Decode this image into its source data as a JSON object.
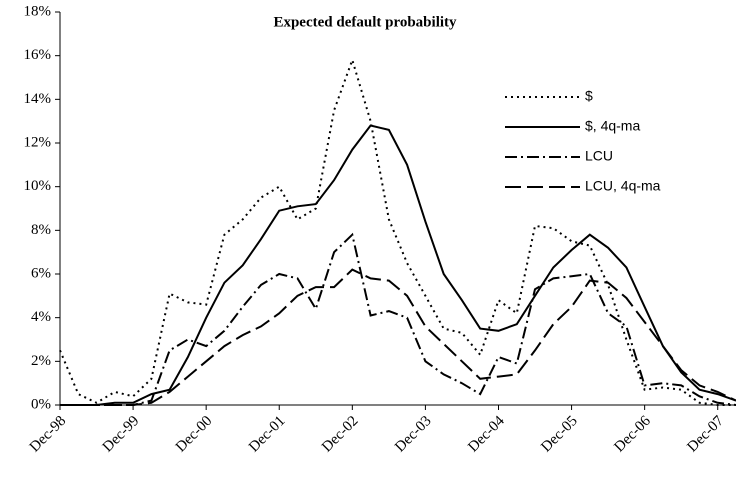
{
  "chart_data": {
    "type": "line",
    "title": "Expected default probability",
    "categories": [
      "Dec-98",
      null,
      null,
      null,
      "Dec-99",
      null,
      null,
      null,
      "Dec-00",
      null,
      null,
      null,
      "Dec-01",
      null,
      null,
      null,
      "Dec-02",
      null,
      null,
      null,
      "Dec-03",
      null,
      null,
      null,
      "Dec-04",
      null,
      null,
      null,
      "Dec-05",
      null,
      null,
      null,
      "Dec-06",
      null,
      null,
      null,
      "Dec-07",
      null
    ],
    "series": [
      {
        "name": "$",
        "color": "#000000",
        "dash": "2,4",
        "values": [
          2.5,
          0.5,
          0.1,
          0.6,
          0.4,
          1.2,
          5.1,
          4.7,
          4.6,
          7.8,
          8.5,
          9.5,
          10,
          8.5,
          9,
          13.5,
          15.8,
          13,
          8.5,
          6.5,
          5,
          3.5,
          3.3,
          2.3,
          4.8,
          4.2,
          8.2,
          8.1,
          7.5,
          7.3,
          5.5,
          3,
          0.7,
          0.8,
          0.7,
          0.1,
          0,
          0
        ]
      },
      {
        "name": "$, 4q-ma",
        "color": "#000000",
        "dash": "none",
        "values": [
          0,
          0,
          0,
          0.1,
          0.1,
          0.5,
          0.7,
          2.2,
          4,
          5.6,
          6.4,
          7.6,
          8.9,
          9.1,
          9.2,
          10.3,
          11.7,
          12.8,
          12.6,
          11,
          8.4,
          6,
          4.8,
          3.5,
          3.4,
          3.7,
          5,
          6.3,
          7.1,
          7.8,
          7.2,
          6.3,
          4.5,
          2.7,
          1.5,
          0.7,
          0.5,
          0.2
        ]
      },
      {
        "name": "LCU",
        "color": "#000000",
        "dash": "12,4,2,4",
        "values": [
          0,
          0,
          0,
          0,
          0,
          0.2,
          2.5,
          3,
          2.7,
          3.4,
          4.5,
          5.5,
          6,
          5.8,
          4.4,
          7,
          7.8,
          4.1,
          4.3,
          4,
          2,
          1.4,
          1,
          0.5,
          2.2,
          1.9,
          5.3,
          5.8,
          5.9,
          6,
          4.2,
          3.6,
          0.9,
          1,
          0.9,
          0.4,
          0.1,
          0
        ]
      },
      {
        "name": "LCU, 4q-ma",
        "color": "#000000",
        "dash": "16,6",
        "values": [
          0,
          0,
          0,
          0,
          0,
          0.1,
          0.6,
          1.3,
          2,
          2.7,
          3.2,
          3.6,
          4.2,
          5,
          5.4,
          5.4,
          6.2,
          5.8,
          5.7,
          5,
          3.6,
          2.8,
          2,
          1.2,
          1.3,
          1.4,
          2.5,
          3.7,
          4.5,
          5.7,
          5.6,
          4.9,
          3.8,
          2.7,
          1.6,
          0.9,
          0.6,
          0.2
        ]
      }
    ],
    "ylim": [
      0,
      18
    ],
    "yticks": [
      {
        "value": 0,
        "label": "0%"
      },
      {
        "value": 2,
        "label": "2%"
      },
      {
        "value": 4,
        "label": "4%"
      },
      {
        "value": 6,
        "label": "6%"
      },
      {
        "value": 8,
        "label": "8%"
      },
      {
        "value": 10,
        "label": "10%"
      },
      {
        "value": 12,
        "label": "12%"
      },
      {
        "value": 14,
        "label": "14%"
      },
      {
        "value": 16,
        "label": "16%"
      },
      {
        "value": 18,
        "label": "18%"
      }
    ],
    "legend": "upper-right"
  }
}
